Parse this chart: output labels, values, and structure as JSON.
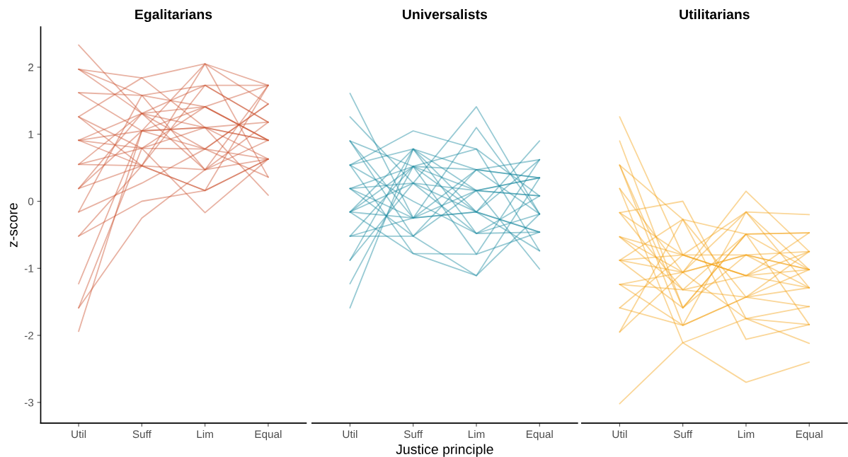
{
  "chart_data": [
    {
      "type": "line",
      "title": "Egalitarians",
      "ylabel": "z-score",
      "categories": [
        "Util",
        "Suff",
        "Lim",
        "Equal"
      ],
      "ylim": [
        -3.31,
        2.6
      ],
      "yticks": [
        -3,
        -2,
        -1,
        0,
        1,
        2
      ],
      "grid": false,
      "legend": false,
      "series": [
        {
          "color": "#cc5533",
          "values": [
            2.33,
            1.31,
            1.1,
            0.91
          ]
        },
        {
          "color": "#cc5533",
          "values": [
            1.97,
            1.84,
            2.05,
            1.73
          ]
        },
        {
          "color": "#cc5533",
          "values": [
            1.97,
            1.31,
            0.78,
            0.63
          ]
        },
        {
          "color": "#cc5533",
          "values": [
            1.97,
            1.58,
            0.47,
            1.18
          ]
        },
        {
          "color": "#cc5533",
          "values": [
            1.62,
            1.58,
            1.73,
            1.73
          ]
        },
        {
          "color": "#cc5533",
          "values": [
            1.62,
            1.05,
            2.05,
            1.45
          ]
        },
        {
          "color": "#cc5533",
          "values": [
            1.26,
            0.79,
            1.41,
            0.91
          ]
        },
        {
          "color": "#cc5533",
          "values": [
            1.26,
            1.84,
            1.1,
            0.63
          ]
        },
        {
          "color": "#cc5533",
          "values": [
            1.26,
            0.53,
            0.16,
            1.73
          ]
        },
        {
          "color": "#cc5533",
          "values": [
            0.91,
            0.79,
            0.78,
            1.45
          ]
        },
        {
          "color": "#cc5533",
          "values": [
            0.91,
            1.05,
            1.1,
            1.18
          ]
        },
        {
          "color": "#cc5533",
          "values": [
            0.91,
            1.31,
            0.47,
            0.91
          ]
        },
        {
          "color": "#cc5533",
          "values": [
            0.91,
            0.53,
            2.05,
            0.36
          ]
        },
        {
          "color": "#cc5533",
          "values": [
            0.55,
            0.53,
            0.47,
            0.63
          ]
        },
        {
          "color": "#cc5533",
          "values": [
            0.55,
            1.31,
            1.73,
            1.18
          ]
        },
        {
          "color": "#cc5533",
          "values": [
            0.55,
            0.79,
            1.1,
            0.91
          ]
        },
        {
          "color": "#cc5533",
          "values": [
            0.19,
            0.53,
            0.16,
            0.63
          ]
        },
        {
          "color": "#cc5533",
          "values": [
            0.19,
            1.31,
            1.41,
            1.73
          ]
        },
        {
          "color": "#cc5533",
          "values": [
            0.19,
            1.05,
            0.78,
            0.36
          ]
        },
        {
          "color": "#cc5533",
          "values": [
            -0.16,
            0.27,
            0.78,
            1.45
          ]
        },
        {
          "color": "#cc5533",
          "values": [
            -0.16,
            1.58,
            1.41,
            0.91
          ]
        },
        {
          "color": "#cc5533",
          "values": [
            -0.52,
            0.53,
            1.73,
            1.18
          ]
        },
        {
          "color": "#cc5533",
          "values": [
            -0.52,
            0.0,
            0.16,
            0.63
          ]
        },
        {
          "color": "#cc5533",
          "values": [
            -1.23,
            1.05,
            1.41,
            0.91
          ]
        },
        {
          "color": "#cc5533",
          "values": [
            -1.59,
            0.79,
            -0.17,
            0.63
          ]
        },
        {
          "color": "#cc5533",
          "values": [
            -1.59,
            -0.25,
            0.47,
            1.73
          ]
        },
        {
          "color": "#cc5533",
          "values": [
            -1.94,
            1.05,
            1.1,
            0.09
          ]
        }
      ]
    },
    {
      "type": "line",
      "title": "Universalists",
      "xlabel": "Justice principle",
      "categories": [
        "Util",
        "Suff",
        "Lim",
        "Equal"
      ],
      "yticks": [
        -3,
        -2,
        -1,
        0,
        1,
        2
      ],
      "tick_labels": "x",
      "grid": false,
      "legend": false,
      "series": [
        {
          "color": "#1a8aa0",
          "values": [
            1.61,
            -0.25,
            0.16,
            0.35
          ]
        },
        {
          "color": "#1a8aa0",
          "values": [
            1.26,
            0.27,
            -0.16,
            -0.46
          ]
        },
        {
          "color": "#1a8aa0",
          "values": [
            0.9,
            0.52,
            0.47,
            0.62
          ]
        },
        {
          "color": "#1a8aa0",
          "values": [
            0.9,
            -0.25,
            1.1,
            -0.19
          ]
        },
        {
          "color": "#1a8aa0",
          "values": [
            0.9,
            -0.52,
            -1.11,
            0.35
          ]
        },
        {
          "color": "#1a8aa0",
          "values": [
            0.54,
            0.78,
            0.16,
            0.35
          ]
        },
        {
          "color": "#1a8aa0",
          "values": [
            0.54,
            0.0,
            -0.48,
            0.08
          ]
        },
        {
          "color": "#1a8aa0",
          "values": [
            0.54,
            1.05,
            0.78,
            -0.74
          ]
        },
        {
          "color": "#1a8aa0",
          "values": [
            0.54,
            -0.78,
            -1.11,
            -0.19
          ]
        },
        {
          "color": "#1a8aa0",
          "values": [
            0.19,
            0.52,
            -0.16,
            0.62
          ]
        },
        {
          "color": "#1a8aa0",
          "values": [
            0.19,
            -0.52,
            0.47,
            0.35
          ]
        },
        {
          "color": "#1a8aa0",
          "values": [
            0.19,
            0.27,
            0.16,
            0.08
          ]
        },
        {
          "color": "#1a8aa0",
          "values": [
            0.19,
            -0.25,
            -0.16,
            -0.46
          ]
        },
        {
          "color": "#1a8aa0",
          "values": [
            -0.16,
            0.78,
            0.47,
            -0.19
          ]
        },
        {
          "color": "#1a8aa0",
          "values": [
            -0.16,
            0.52,
            0.16,
            0.08
          ]
        },
        {
          "color": "#1a8aa0",
          "values": [
            -0.16,
            -0.78,
            -0.79,
            0.62
          ]
        },
        {
          "color": "#1a8aa0",
          "values": [
            -0.16,
            0.27,
            1.41,
            -0.19
          ]
        },
        {
          "color": "#1a8aa0",
          "values": [
            -0.16,
            -0.25,
            -0.16,
            -0.74
          ]
        },
        {
          "color": "#1a8aa0",
          "values": [
            -0.52,
            -0.25,
            0.47,
            0.35
          ]
        },
        {
          "color": "#1a8aa0",
          "values": [
            -0.52,
            0.52,
            -0.79,
            -0.46
          ]
        },
        {
          "color": "#1a8aa0",
          "values": [
            -0.52,
            -0.52,
            0.16,
            -1.01
          ]
        },
        {
          "color": "#1a8aa0",
          "values": [
            -0.88,
            0.78,
            -0.16,
            0.9
          ]
        },
        {
          "color": "#1a8aa0",
          "values": [
            -0.88,
            0.27,
            -0.48,
            -0.19
          ]
        },
        {
          "color": "#1a8aa0",
          "values": [
            -1.23,
            0.52,
            0.78,
            0.08
          ]
        },
        {
          "color": "#1a8aa0",
          "values": [
            -1.59,
            0.78,
            -0.48,
            -0.46
          ]
        }
      ]
    },
    {
      "type": "line",
      "title": "Utilitarians",
      "categories": [
        "Util",
        "Suff",
        "Lim",
        "Equal"
      ],
      "yticks": [
        -3,
        -2,
        -1,
        0,
        1,
        2
      ],
      "tick_labels": "x",
      "grid": false,
      "legend": false,
      "series": [
        {
          "color": "#f5a31a",
          "values": [
            1.26,
            -0.8,
            -1.11,
            -1.02
          ]
        },
        {
          "color": "#f5a31a",
          "values": [
            0.9,
            -1.59,
            -0.49,
            -0.47
          ]
        },
        {
          "color": "#f5a31a",
          "values": [
            0.54,
            -0.27,
            -1.43,
            -1.29
          ]
        },
        {
          "color": "#f5a31a",
          "values": [
            0.54,
            -1.59,
            -0.8,
            -0.75
          ]
        },
        {
          "color": "#f5a31a",
          "values": [
            0.54,
            -1.85,
            -1.43,
            -1.02
          ]
        },
        {
          "color": "#f5a31a",
          "values": [
            0.19,
            -1.06,
            0.15,
            -0.75
          ]
        },
        {
          "color": "#f5a31a",
          "values": [
            0.19,
            -2.11,
            -1.75,
            -1.84
          ]
        },
        {
          "color": "#f5a31a",
          "values": [
            -0.17,
            -0.8,
            -0.16,
            -1.29
          ]
        },
        {
          "color": "#f5a31a",
          "values": [
            -0.17,
            0.0,
            -1.75,
            -1.57
          ]
        },
        {
          "color": "#f5a31a",
          "values": [
            -0.17,
            -1.32,
            -1.11,
            -0.47
          ]
        },
        {
          "color": "#f5a31a",
          "values": [
            -0.53,
            -0.8,
            -0.8,
            -1.02
          ]
        },
        {
          "color": "#f5a31a",
          "values": [
            -0.53,
            -1.06,
            -0.16,
            -0.2
          ]
        },
        {
          "color": "#f5a31a",
          "values": [
            -0.53,
            -1.32,
            -1.43,
            -0.75
          ]
        },
        {
          "color": "#f5a31a",
          "values": [
            -0.88,
            -0.8,
            -1.11,
            -1.29
          ]
        },
        {
          "color": "#f5a31a",
          "values": [
            -0.88,
            -1.06,
            -0.8,
            -1.02
          ]
        },
        {
          "color": "#f5a31a",
          "values": [
            -0.88,
            -1.59,
            -0.49,
            -0.47
          ]
        },
        {
          "color": "#f5a31a",
          "values": [
            -0.88,
            -0.27,
            -2.06,
            -1.84
          ]
        },
        {
          "color": "#f5a31a",
          "values": [
            -1.24,
            -1.06,
            -1.75,
            -2.12
          ]
        },
        {
          "color": "#f5a31a",
          "values": [
            -1.24,
            -1.85,
            -0.16,
            -1.02
          ]
        },
        {
          "color": "#f5a31a",
          "values": [
            -1.24,
            -1.32,
            -0.49,
            -1.02
          ]
        },
        {
          "color": "#f5a31a",
          "values": [
            -1.59,
            -0.8,
            -1.11,
            -0.75
          ]
        },
        {
          "color": "#f5a31a",
          "values": [
            -1.59,
            -1.85,
            -1.43,
            -1.57
          ]
        },
        {
          "color": "#f5a31a",
          "values": [
            -1.95,
            -1.06,
            -0.8,
            -1.29
          ]
        },
        {
          "color": "#f5a31a",
          "values": [
            -1.95,
            -0.27,
            -0.49,
            -1.84
          ]
        },
        {
          "color": "#f5a31a",
          "values": [
            -3.02,
            -2.11,
            -2.7,
            -2.4
          ]
        }
      ]
    }
  ]
}
